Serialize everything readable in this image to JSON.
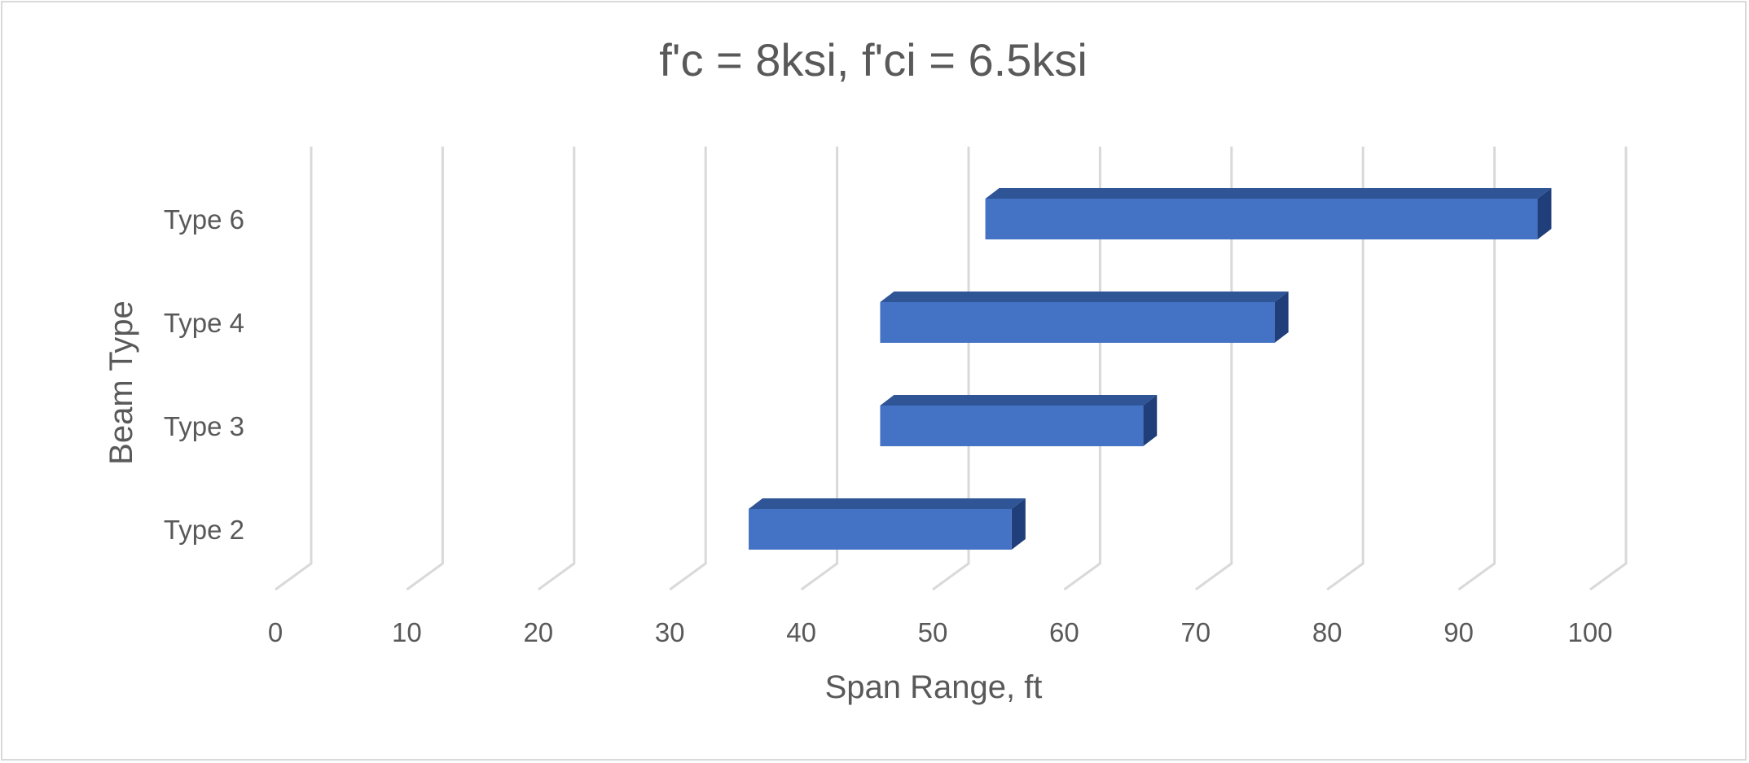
{
  "chart_data": {
    "type": "bar",
    "orientation": "horizontal",
    "style": "3d-floating-range",
    "title": "f'c = 8ksi, f'ci = 6.5ksi",
    "xlabel": "Span Range, ft",
    "ylabel": "Beam Type",
    "xlim": [
      0,
      100
    ],
    "xticks": [
      "0",
      "10",
      "20",
      "30",
      "40",
      "50",
      "60",
      "70",
      "80",
      "90",
      "100"
    ],
    "grid": true,
    "legend": "none",
    "categories": [
      "Type 2",
      "Type 3",
      "Type 4",
      "Type 6"
    ],
    "ranges": [
      {
        "category": "Type 2",
        "min": 36,
        "max": 56
      },
      {
        "category": "Type 3",
        "min": 46,
        "max": 66
      },
      {
        "category": "Type 4",
        "min": 46,
        "max": 76
      },
      {
        "category": "Type 6",
        "min": 54,
        "max": 96
      }
    ],
    "colors": {
      "bar_front": "#4472c4",
      "bar_top": "#2f5597",
      "bar_side": "#203f7a",
      "grid": "#d9d9d9",
      "text": "#595959"
    }
  }
}
